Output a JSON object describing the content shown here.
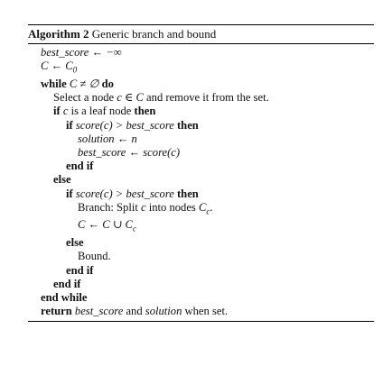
{
  "algorithm": {
    "caption_label": "Algorithm 2",
    "caption_title": "Generic branch and bound",
    "lines": [
      {
        "indent": 1,
        "parts": [
          {
            "t": "best_score ← −∞",
            "s": "m"
          }
        ]
      },
      {
        "indent": 1,
        "parts": [
          {
            "t": "C ← C",
            "s": "m"
          },
          {
            "t": "0",
            "s": "sub"
          }
        ]
      },
      {
        "indent": 1,
        "parts": [
          {
            "t": "while",
            "s": "kw"
          },
          {
            "t": " ",
            "s": ""
          },
          {
            "t": "C ≠ ∅",
            "s": "m"
          },
          {
            "t": " do",
            "s": "kw"
          }
        ]
      },
      {
        "indent": 2,
        "parts": [
          {
            "t": "Select a node ",
            "s": ""
          },
          {
            "t": "c ∈ C",
            "s": "m"
          },
          {
            "t": " and remove it from the set.",
            "s": ""
          }
        ]
      },
      {
        "indent": 2,
        "parts": [
          {
            "t": "if",
            "s": "kw"
          },
          {
            "t": " ",
            "s": ""
          },
          {
            "t": "c",
            "s": "m"
          },
          {
            "t": " is a leaf node ",
            "s": ""
          },
          {
            "t": "then",
            "s": "kw"
          }
        ]
      },
      {
        "indent": 3,
        "parts": [
          {
            "t": "if",
            "s": "kw"
          },
          {
            "t": " ",
            "s": ""
          },
          {
            "t": "score(c) > best_score",
            "s": "m"
          },
          {
            "t": " then",
            "s": "kw"
          }
        ]
      },
      {
        "indent": 4,
        "parts": [
          {
            "t": "solution ← n",
            "s": "m"
          }
        ]
      },
      {
        "indent": 4,
        "parts": [
          {
            "t": "best_score ← score(c)",
            "s": "m"
          }
        ]
      },
      {
        "indent": 3,
        "parts": [
          {
            "t": "end if",
            "s": "kw"
          }
        ]
      },
      {
        "indent": 2,
        "parts": [
          {
            "t": "else",
            "s": "kw"
          }
        ]
      },
      {
        "indent": 3,
        "parts": [
          {
            "t": "if",
            "s": "kw"
          },
          {
            "t": " ",
            "s": ""
          },
          {
            "t": "score(c) > best_score",
            "s": "m"
          },
          {
            "t": " then",
            "s": "kw"
          }
        ]
      },
      {
        "indent": 4,
        "parts": [
          {
            "t": "Branch: Split ",
            "s": ""
          },
          {
            "t": "c",
            "s": "m"
          },
          {
            "t": " into nodes ",
            "s": ""
          },
          {
            "t": "C",
            "s": "m"
          },
          {
            "t": "c",
            "s": "sub"
          },
          {
            "t": ".",
            "s": ""
          }
        ]
      },
      {
        "indent": 4,
        "parts": [
          {
            "t": "C ← C ∪ C",
            "s": "m"
          },
          {
            "t": "c",
            "s": "sub"
          }
        ]
      },
      {
        "indent": 3,
        "parts": [
          {
            "t": "else",
            "s": "kw"
          }
        ]
      },
      {
        "indent": 4,
        "parts": [
          {
            "t": "Bound.",
            "s": ""
          }
        ]
      },
      {
        "indent": 3,
        "parts": [
          {
            "t": "end if",
            "s": "kw"
          }
        ]
      },
      {
        "indent": 2,
        "parts": [
          {
            "t": "end if",
            "s": "kw"
          }
        ]
      },
      {
        "indent": 1,
        "parts": [
          {
            "t": "end while",
            "s": "kw"
          }
        ]
      },
      {
        "indent": 1,
        "parts": [
          {
            "t": "return",
            "s": "kw"
          },
          {
            "t": "  ",
            "s": ""
          },
          {
            "t": "best_score",
            "s": "m"
          },
          {
            "t": " and ",
            "s": ""
          },
          {
            "t": "solution",
            "s": "m"
          },
          {
            "t": " when set.",
            "s": ""
          }
        ]
      }
    ]
  }
}
